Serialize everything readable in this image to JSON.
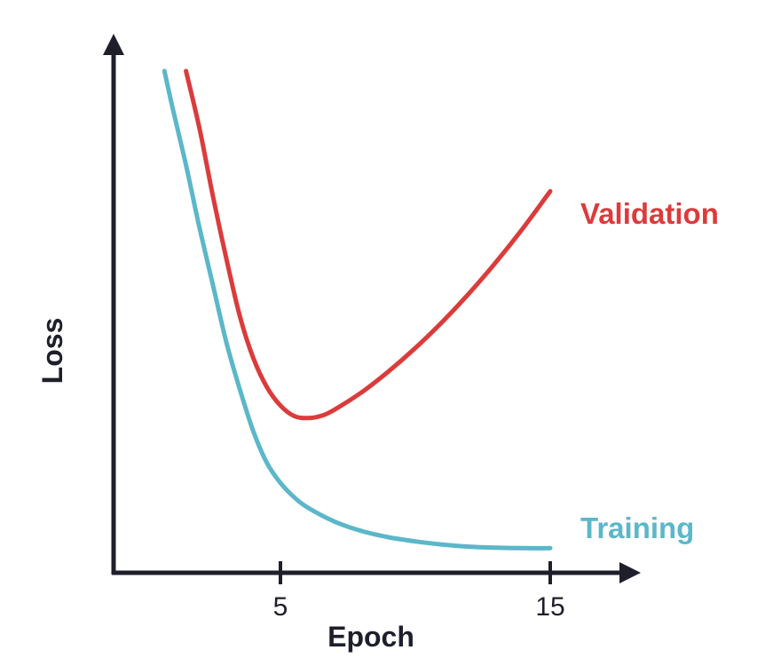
{
  "chart_data": {
    "type": "line",
    "title": "",
    "xlabel": "Epoch",
    "ylabel": "Loss",
    "xlim": [
      0,
      17.6
    ],
    "ylim": [
      0,
      10
    ],
    "x_ticks": [
      5,
      15
    ],
    "x_tick_labels": [
      "5",
      "15"
    ],
    "grid": false,
    "legend": "inline-right",
    "series": [
      {
        "name": "Validation",
        "color": "#dc3b3b",
        "label_color": "#dc3b3b",
        "x": [
          1.5,
          2.0,
          2.5,
          3.0,
          3.5,
          4.0,
          4.5,
          5.0,
          5.5,
          6.0,
          6.5,
          7.0,
          8.0,
          9.0,
          10.0,
          11.0,
          12.0,
          13.0,
          14.0,
          15.0
        ],
        "y": [
          9.6,
          8.5,
          7.2,
          6.0,
          4.9,
          4.1,
          3.55,
          3.2,
          3.0,
          2.96,
          3.0,
          3.12,
          3.45,
          3.85,
          4.3,
          4.8,
          5.35,
          5.95,
          6.6,
          7.3
        ]
      },
      {
        "name": "Training",
        "color": "#5bb7c9",
        "label_color": "#5bb7c9",
        "x": [
          0.7,
          1.0,
          1.5,
          2.0,
          2.5,
          3.0,
          3.5,
          4.0,
          4.5,
          5.0,
          5.5,
          6.0,
          7.0,
          8.0,
          9.0,
          10.0,
          11.0,
          12.0,
          13.0,
          14.0,
          15.0
        ],
        "y": [
          9.6,
          8.9,
          7.8,
          6.6,
          5.5,
          4.4,
          3.5,
          2.7,
          2.1,
          1.72,
          1.45,
          1.25,
          0.98,
          0.8,
          0.68,
          0.6,
          0.54,
          0.5,
          0.48,
          0.47,
          0.47
        ]
      }
    ]
  }
}
